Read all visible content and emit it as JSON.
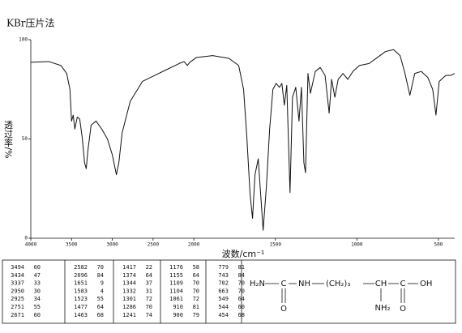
{
  "chart_data": {
    "type": "line",
    "title": "KBr压片法",
    "y_label": "透过率/%",
    "x_label": "波数/cm⁻¹",
    "color": "#111111",
    "xlim": [
      4000,
      400
    ],
    "x_scale_break": 2000,
    "x_scale_ratio": 2,
    "xticks": [
      4000,
      3500,
      3000,
      2500,
      2000,
      1500,
      1000,
      500
    ],
    "ylim": [
      0,
      100
    ],
    "yticks": [
      0,
      50,
      100
    ],
    "x": [
      4000,
      3780,
      3630,
      3560,
      3520,
      3500,
      3480,
      3460,
      3430,
      3400,
      3370,
      3340,
      3320,
      3300,
      3260,
      3200,
      3130,
      3060,
      3000,
      2950,
      2920,
      2880,
      2780,
      2630,
      2480,
      2330,
      2180,
      2120,
      2080,
      2050,
      1985,
      1885,
      1785,
      1725,
      1695,
      1675,
      1655,
      1640,
      1625,
      1605,
      1590,
      1575,
      1555,
      1535,
      1515,
      1495,
      1475,
      1460,
      1445,
      1430,
      1410,
      1395,
      1375,
      1355,
      1340,
      1325,
      1315,
      1300,
      1285,
      1255,
      1225,
      1195,
      1170,
      1155,
      1135,
      1115,
      1085,
      1055,
      1025,
      985,
      925,
      875,
      825,
      775,
      735,
      705,
      675,
      645,
      605,
      565,
      535,
      515,
      495,
      455,
      425,
      400
    ],
    "values": [
      88.6,
      89,
      87,
      83,
      75,
      59,
      62,
      55,
      61,
      60,
      51,
      38,
      35,
      44,
      57,
      59,
      55,
      50,
      42,
      32,
      38,
      53,
      69,
      79,
      82,
      85,
      88,
      89,
      87,
      88.6,
      91,
      92,
      90.6,
      87,
      75,
      51,
      22,
      10,
      32,
      40,
      22,
      4,
      26,
      55,
      75,
      78,
      76,
      78,
      67,
      77,
      23,
      71,
      76,
      59,
      76,
      38,
      33,
      83,
      73,
      84,
      86,
      82,
      63,
      80,
      71,
      80,
      83,
      80,
      84,
      87,
      88,
      91,
      94,
      95,
      92,
      83,
      72,
      83,
      84,
      81,
      75,
      62,
      79,
      82,
      82,
      83
    ],
    "peak_table": [
      [
        [
          3494,
          60
        ],
        [
          3434,
          47
        ],
        [
          3337,
          33
        ],
        [
          2950,
          30
        ],
        [
          2925,
          34
        ],
        [
          2751,
          55
        ],
        [
          2671,
          60
        ]
      ],
      [
        [
          2582,
          70
        ],
        [
          2096,
          84
        ],
        [
          1651,
          9
        ],
        [
          1583,
          4
        ],
        [
          1523,
          55
        ],
        [
          1477,
          64
        ],
        [
          1463,
          68
        ]
      ],
      [
        [
          1417,
          22
        ],
        [
          1374,
          64
        ],
        [
          1344,
          37
        ],
        [
          1332,
          31
        ],
        [
          1301,
          72
        ],
        [
          1286,
          70
        ],
        [
          1241,
          74
        ]
      ],
      [
        [
          1176,
          58
        ],
        [
          1155,
          64
        ],
        [
          1109,
          70
        ],
        [
          1104,
          70
        ],
        [
          1061,
          72
        ],
        [
          910,
          81
        ],
        [
          900,
          79
        ]
      ],
      [
        [
          779,
          81
        ],
        [
          743,
          84
        ],
        [
          702,
          70
        ],
        [
          663,
          70
        ],
        [
          549,
          64
        ],
        [
          544,
          60
        ],
        [
          454,
          68
        ]
      ]
    ],
    "structure": {
      "h2n": "H₂N",
      "c1": "C",
      "nh": "NH",
      "chain": "(CH₂)₃",
      "ch": "CH",
      "c2": "C",
      "oh": "OH",
      "o1": "O",
      "nh2": "NH₂",
      "o2": "O"
    }
  }
}
